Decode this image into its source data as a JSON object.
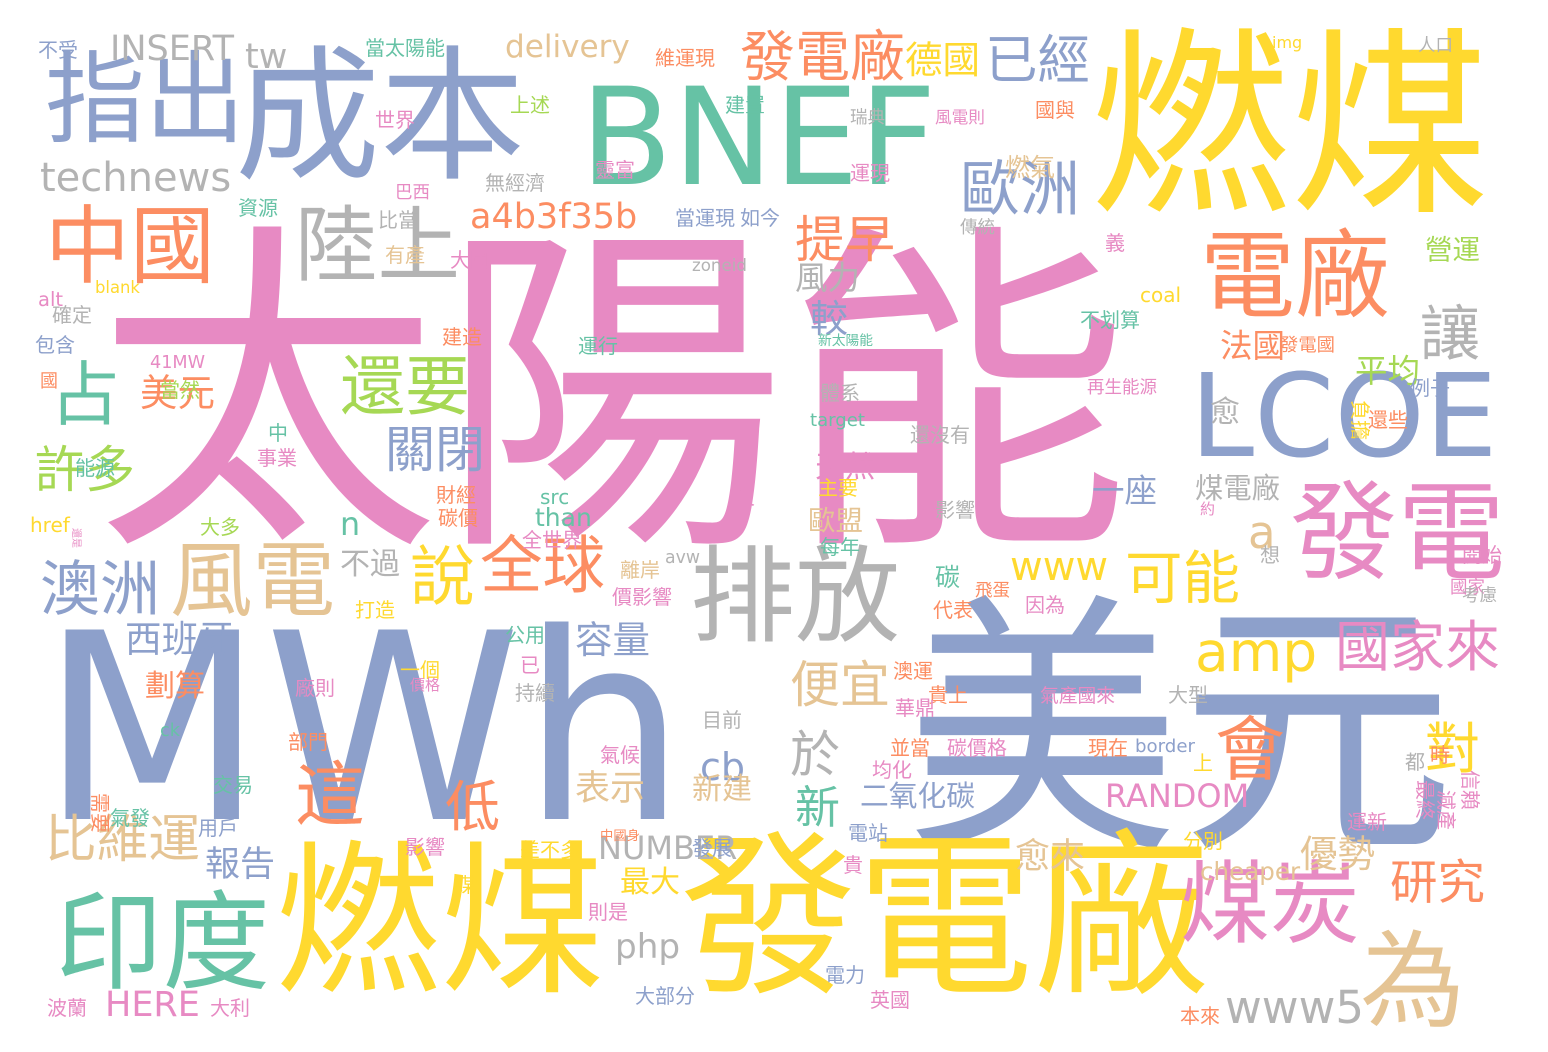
{
  "palette": {
    "pink": "#e78ac3",
    "blue": "#8da0cb",
    "yellow": "#ffd92f",
    "green": "#66c2a5",
    "orange": "#fc8d62",
    "tan": "#e5c494",
    "gray": "#b3b3b3",
    "lime": "#a6d854"
  },
  "words": [
    {
      "text": "太陽能",
      "color": "pink"
    },
    {
      "text": "MWh",
      "color": "blue"
    },
    {
      "text": "美元",
      "color": "blue"
    },
    {
      "text": "燃煤",
      "color": "yellow"
    },
    {
      "text": "成本",
      "color": "blue"
    },
    {
      "text": "BNEF",
      "color": "green"
    },
    {
      "text": "發電廠",
      "color": "yellow"
    },
    {
      "text": "燃煤",
      "color": "yellow"
    },
    {
      "text": "指出",
      "color": "blue"
    },
    {
      "text": "中國",
      "color": "orange"
    },
    {
      "text": "電廠",
      "color": "orange"
    },
    {
      "text": "陸上",
      "color": "gray"
    },
    {
      "text": "排放",
      "color": "gray"
    },
    {
      "text": "LCOE",
      "color": "blue"
    },
    {
      "text": "發電",
      "color": "pink"
    },
    {
      "text": "風電",
      "color": "tan"
    },
    {
      "text": "印度",
      "color": "green"
    },
    {
      "text": "占",
      "color": "green"
    },
    {
      "text": "還要",
      "color": "lime"
    },
    {
      "text": "澳洲",
      "color": "blue"
    },
    {
      "text": "煤炭",
      "color": "pink"
    },
    {
      "text": "為",
      "color": "tan"
    },
    {
      "text": "說",
      "color": "yellow"
    },
    {
      "text": "全球",
      "color": "orange"
    },
    {
      "text": "發電廠",
      "color": "orange"
    },
    {
      "text": "已經",
      "color": "blue"
    },
    {
      "text": "歐洲",
      "color": "blue"
    },
    {
      "text": "這",
      "color": "orange"
    },
    {
      "text": "會",
      "color": "orange"
    },
    {
      "text": "可能",
      "color": "yellow"
    },
    {
      "text": "比維運",
      "color": "tan"
    },
    {
      "text": "於",
      "color": "gray"
    },
    {
      "text": "低",
      "color": "orange"
    },
    {
      "text": "amp",
      "color": "yellow"
    },
    {
      "text": "a4b3f35b",
      "color": "orange"
    },
    {
      "text": "technews",
      "color": "gray"
    },
    {
      "text": "提早",
      "color": "orange"
    },
    {
      "text": "關閉",
      "color": "blue"
    },
    {
      "text": "國家來",
      "color": "pink"
    },
    {
      "text": "許多",
      "color": "lime"
    },
    {
      "text": "便宜",
      "color": "tan"
    },
    {
      "text": "www5",
      "color": "gray"
    },
    {
      "text": "讓",
      "color": "gray"
    },
    {
      "text": "新",
      "color": "green"
    },
    {
      "text": "研究",
      "color": "orange"
    },
    {
      "text": "對",
      "color": "yellow"
    },
    {
      "text": "tw",
      "color": "gray"
    },
    {
      "text": "INSERT",
      "color": "gray"
    },
    {
      "text": "delivery",
      "color": "tan"
    },
    {
      "text": "德國",
      "color": "yellow"
    },
    {
      "text": "www",
      "color": "yellow"
    },
    {
      "text": "a",
      "color": "tan"
    },
    {
      "text": "美元",
      "color": "orange"
    },
    {
      "text": "西班牙",
      "color": "blue"
    },
    {
      "text": "容量",
      "color": "blue"
    },
    {
      "text": "報告",
      "color": "blue"
    },
    {
      "text": "風力",
      "color": "gray"
    },
    {
      "text": "較",
      "color": "blue"
    },
    {
      "text": "法國",
      "color": "orange"
    },
    {
      "text": "平均",
      "color": "lime"
    },
    {
      "text": "愈",
      "color": "gray"
    },
    {
      "text": "天然",
      "color": "pink"
    },
    {
      "text": "一座",
      "color": "blue"
    },
    {
      "text": "煤電廠",
      "color": "gray"
    },
    {
      "text": "n",
      "color": "green"
    },
    {
      "text": "不過",
      "color": "gray"
    },
    {
      "text": "碳",
      "color": "green"
    },
    {
      "text": "歐盟",
      "color": "tan"
    },
    {
      "text": "cb",
      "color": "blue"
    },
    {
      "text": "表示",
      "color": "tan"
    },
    {
      "text": "新建",
      "color": "tan"
    },
    {
      "text": "二氧化碳",
      "color": "blue"
    },
    {
      "text": "RANDOM",
      "color": "pink"
    },
    {
      "text": "NUMBER",
      "color": "gray"
    },
    {
      "text": "愈來",
      "color": "tan"
    },
    {
      "text": "優勢",
      "color": "tan"
    },
    {
      "text": "cheaper",
      "color": "tan"
    },
    {
      "text": "最大",
      "color": "yellow"
    },
    {
      "text": "php",
      "color": "gray"
    },
    {
      "text": "HERE",
      "color": "pink"
    },
    {
      "text": "劃算",
      "color": "orange"
    },
    {
      "text": "燃氣",
      "color": "tan"
    },
    {
      "text": "不受",
      "color": "blue"
    },
    {
      "text": "當太陽能",
      "color": "green"
    },
    {
      "text": "維運現",
      "color": "orange"
    },
    {
      "text": "img",
      "color": "yellow"
    },
    {
      "text": "人口",
      "color": "gray"
    },
    {
      "text": "上述",
      "color": "lime"
    },
    {
      "text": "建置",
      "color": "green"
    },
    {
      "text": "世界",
      "color": "pink"
    },
    {
      "text": "瑞典",
      "color": "gray"
    },
    {
      "text": "風電則",
      "color": "pink"
    },
    {
      "text": "國與",
      "color": "orange"
    },
    {
      "text": "靈富",
      "color": "pink"
    },
    {
      "text": "無經濟",
      "color": "gray"
    },
    {
      "text": "運現",
      "color": "pink"
    },
    {
      "text": "巴西",
      "color": "pink"
    },
    {
      "text": "當運現",
      "color": "blue"
    },
    {
      "text": "如今",
      "color": "blue"
    },
    {
      "text": "資源",
      "color": "green"
    },
    {
      "text": "比當",
      "color": "gray"
    },
    {
      "text": "傳統",
      "color": "gray"
    },
    {
      "text": "有產",
      "color": "tan"
    },
    {
      "text": "大國",
      "color": "pink"
    },
    {
      "text": "zoneid",
      "color": "gray"
    },
    {
      "text": "義",
      "color": "pink"
    },
    {
      "text": "營運",
      "color": "lime"
    },
    {
      "text": "blank",
      "color": "yellow"
    },
    {
      "text": "alt",
      "color": "pink"
    },
    {
      "text": "coal",
      "color": "yellow"
    },
    {
      "text": "確定",
      "color": "gray"
    },
    {
      "text": "包含",
      "color": "blue"
    },
    {
      "text": "建造",
      "color": "orange"
    },
    {
      "text": "運行",
      "color": "green"
    },
    {
      "text": "新太陽能",
      "color": "green"
    },
    {
      "text": "不划算",
      "color": "green"
    },
    {
      "text": "發電國",
      "color": "orange"
    },
    {
      "text": "41MW",
      "color": "pink"
    },
    {
      "text": "國",
      "color": "orange"
    },
    {
      "text": "當然",
      "color": "lime"
    },
    {
      "text": "體系",
      "color": "gray"
    },
    {
      "text": "再生能源",
      "color": "pink"
    },
    {
      "text": "例子",
      "color": "blue"
    },
    {
      "text": "target",
      "color": "green"
    },
    {
      "text": "負擔",
      "color": "yellow"
    },
    {
      "text": "還些",
      "color": "orange"
    },
    {
      "text": "中",
      "color": "green"
    },
    {
      "text": "事業",
      "color": "pink"
    },
    {
      "text": "還沒有",
      "color": "gray"
    },
    {
      "text": "能源",
      "color": "green"
    },
    {
      "text": "財經",
      "color": "orange"
    },
    {
      "text": "src",
      "color": "green"
    },
    {
      "text": "主要",
      "color": "yellow"
    },
    {
      "text": "href",
      "color": "yellow"
    },
    {
      "text": "還是",
      "color": "pink"
    },
    {
      "text": "大多",
      "color": "lime"
    },
    {
      "text": "碳價",
      "color": "orange"
    },
    {
      "text": "than",
      "color": "green"
    },
    {
      "text": "沒",
      "color": "pink"
    },
    {
      "text": "影響",
      "color": "gray"
    },
    {
      "text": "約",
      "color": "pink"
    },
    {
      "text": "全世界",
      "color": "pink"
    },
    {
      "text": "每年",
      "color": "green"
    },
    {
      "text": "想",
      "color": "gray"
    },
    {
      "text": "飛蛋",
      "color": "orange"
    },
    {
      "text": "開始",
      "color": "pink"
    },
    {
      "text": "國家",
      "color": "pink"
    },
    {
      "text": "avw",
      "color": "gray"
    },
    {
      "text": "離岸",
      "color": "tan"
    },
    {
      "text": "價影響",
      "color": "pink"
    },
    {
      "text": "打造",
      "color": "yellow"
    },
    {
      "text": "代表",
      "color": "orange"
    },
    {
      "text": "因為",
      "color": "pink"
    },
    {
      "text": "考慮",
      "color": "gray"
    },
    {
      "text": "公用",
      "color": "green"
    },
    {
      "text": "一個",
      "color": "yellow"
    },
    {
      "text": "價格",
      "color": "pink"
    },
    {
      "text": "已",
      "color": "pink"
    },
    {
      "text": "廠則",
      "color": "pink"
    },
    {
      "text": "持續",
      "color": "gray"
    },
    {
      "text": "澳運",
      "color": "orange"
    },
    {
      "text": "貴上",
      "color": "orange"
    },
    {
      "text": "氣產國來",
      "color": "pink"
    },
    {
      "text": "大型",
      "color": "gray"
    },
    {
      "text": "ck",
      "color": "green"
    },
    {
      "text": "部門",
      "color": "orange"
    },
    {
      "text": "目前",
      "color": "gray"
    },
    {
      "text": "華鼎",
      "color": "pink"
    },
    {
      "text": "並當",
      "color": "orange"
    },
    {
      "text": "碳價格",
      "color": "pink"
    },
    {
      "text": "現在",
      "color": "orange"
    },
    {
      "text": "border",
      "color": "blue"
    },
    {
      "text": "氣候",
      "color": "pink"
    },
    {
      "text": "均化",
      "color": "pink"
    },
    {
      "text": "上",
      "color": "yellow"
    },
    {
      "text": "時",
      "color": "orange"
    },
    {
      "text": "都",
      "color": "gray"
    },
    {
      "text": "信賴",
      "color": "pink"
    },
    {
      "text": "最終",
      "color": "pink"
    },
    {
      "text": "交易",
      "color": "green"
    },
    {
      "text": "需要",
      "color": "orange"
    },
    {
      "text": "氣發",
      "color": "green"
    },
    {
      "text": "用戶",
      "color": "blue"
    },
    {
      "text": "電站",
      "color": "blue"
    },
    {
      "text": "中國身",
      "color": "orange"
    },
    {
      "text": "發展",
      "color": "blue"
    },
    {
      "text": "運新",
      "color": "pink"
    },
    {
      "text": "減產",
      "color": "pink"
    },
    {
      "text": "分別",
      "color": "yellow"
    },
    {
      "text": "影響",
      "color": "pink"
    },
    {
      "text": "差不多",
      "color": "yellow"
    },
    {
      "text": "貴",
      "color": "pink"
    },
    {
      "text": "媒",
      "color": "yellow"
    },
    {
      "text": "則是",
      "color": "pink"
    },
    {
      "text": "電力",
      "color": "blue"
    },
    {
      "text": "波蘭",
      "color": "pink"
    },
    {
      "text": "大利",
      "color": "pink"
    },
    {
      "text": "大部分",
      "color": "blue"
    },
    {
      "text": "英國",
      "color": "pink"
    },
    {
      "text": "本來",
      "color": "orange"
    }
  ]
}
